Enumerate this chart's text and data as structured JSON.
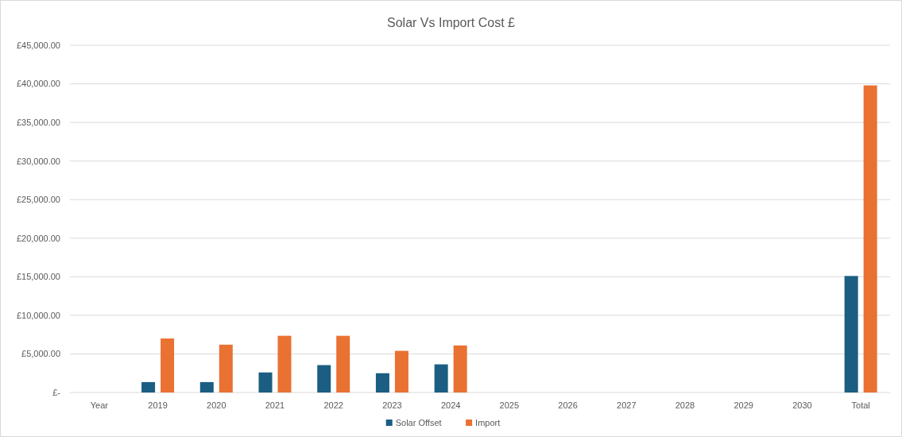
{
  "chart_data": {
    "type": "bar",
    "title": "Solar Vs Import Cost £",
    "categories": [
      "Year",
      "2019",
      "2020",
      "2021",
      "2022",
      "2023",
      "2024",
      "2025",
      "2026",
      "2027",
      "2028",
      "2029",
      "2030",
      "Total"
    ],
    "series": [
      {
        "name": "Solar Offset",
        "color": "#1b5e82",
        "values": [
          null,
          1350,
          1350,
          2600,
          3550,
          2500,
          3650,
          null,
          null,
          null,
          null,
          null,
          null,
          15100
        ]
      },
      {
        "name": "Import",
        "color": "#e97132",
        "values": [
          null,
          7000,
          6200,
          7350,
          7350,
          5400,
          6100,
          null,
          null,
          null,
          null,
          null,
          null,
          39800
        ]
      }
    ],
    "ylim": [
      0,
      45000
    ],
    "yticks": [
      {
        "value": 0,
        "label": "£-"
      },
      {
        "value": 5000,
        "label": "£5,000.00"
      },
      {
        "value": 10000,
        "label": "£10,000.00"
      },
      {
        "value": 15000,
        "label": "£15,000.00"
      },
      {
        "value": 20000,
        "label": "£20,000.00"
      },
      {
        "value": 25000,
        "label": "£25,000.00"
      },
      {
        "value": 30000,
        "label": "£30,000.00"
      },
      {
        "value": 35000,
        "label": "£35,000.00"
      },
      {
        "value": 40000,
        "label": "£40,000.00"
      },
      {
        "value": 45000,
        "label": "£45,000.00"
      }
    ],
    "grid": "y",
    "legend": "bottom"
  }
}
